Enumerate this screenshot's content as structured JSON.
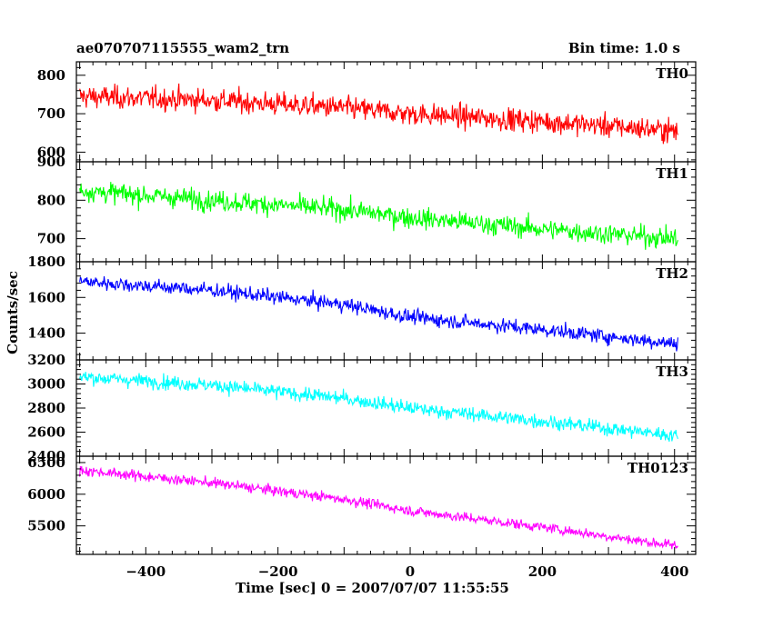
{
  "header": {
    "left": "ae070707115555_wam2_trn",
    "right": "Bin time: 1.0 s"
  },
  "chart_data": {
    "type": "line",
    "title": "ae070707115555_wam2_trn",
    "subtitle": "Bin time: 1.0 s",
    "xlabel": "Time [sec] 0 = 2007/07/07 11:55:55",
    "ylabel": "Counts/sec",
    "xlim": [
      -505,
      432
    ],
    "xticks": [
      -400,
      -200,
      0,
      200,
      400
    ],
    "xtick_labels": [
      "−400",
      "−200",
      "0",
      "200",
      "400"
    ],
    "x_start": -500,
    "x_end": 405,
    "x_step": 1,
    "grid": false,
    "legend": "none",
    "panels": [
      {
        "name": "TH0",
        "color": "#ff0000",
        "ylim": [
          575,
          835
        ],
        "yticks": [
          600,
          700,
          800
        ],
        "trend": [
          [
            -500,
            745
          ],
          [
            -300,
            735
          ],
          [
            -100,
            715
          ],
          [
            0,
            700
          ],
          [
            200,
            680
          ],
          [
            405,
            655
          ]
        ],
        "noise_sd": 28
      },
      {
        "name": "TH1",
        "color": "#00ff00",
        "ylim": [
          640,
          900
        ],
        "yticks": [
          700,
          800,
          900
        ],
        "trend": [
          [
            -500,
            825
          ],
          [
            -300,
            800
          ],
          [
            -100,
            775
          ],
          [
            0,
            755
          ],
          [
            200,
            725
          ],
          [
            405,
            700
          ]
        ],
        "noise_sd": 25
      },
      {
        "name": "TH2",
        "color": "#0000ff",
        "ylim": [
          1250,
          1800
        ],
        "yticks": [
          1400,
          1600,
          1800
        ],
        "trend": [
          [
            -500,
            1690
          ],
          [
            -300,
            1640
          ],
          [
            -100,
            1560
          ],
          [
            0,
            1490
          ],
          [
            200,
            1420
          ],
          [
            405,
            1340
          ]
        ],
        "noise_sd": 38
      },
      {
        "name": "TH3",
        "color": "#00ffff",
        "ylim": [
          2400,
          3200
        ],
        "yticks": [
          2400,
          2600,
          2800,
          3000,
          3200
        ],
        "trend": [
          [
            -500,
            3060
          ],
          [
            -300,
            2990
          ],
          [
            -100,
            2880
          ],
          [
            0,
            2800
          ],
          [
            200,
            2690
          ],
          [
            405,
            2570
          ]
        ],
        "noise_sd": 55
      },
      {
        "name": "TH0123",
        "color": "#ff00ff",
        "ylim": [
          5050,
          6600
        ],
        "yticks": [
          5500,
          6000,
          6500
        ],
        "trend": [
          [
            -500,
            6380
          ],
          [
            -300,
            6180
          ],
          [
            -100,
            5920
          ],
          [
            0,
            5740
          ],
          [
            200,
            5480
          ],
          [
            405,
            5180
          ]
        ],
        "noise_sd": 75
      }
    ]
  }
}
